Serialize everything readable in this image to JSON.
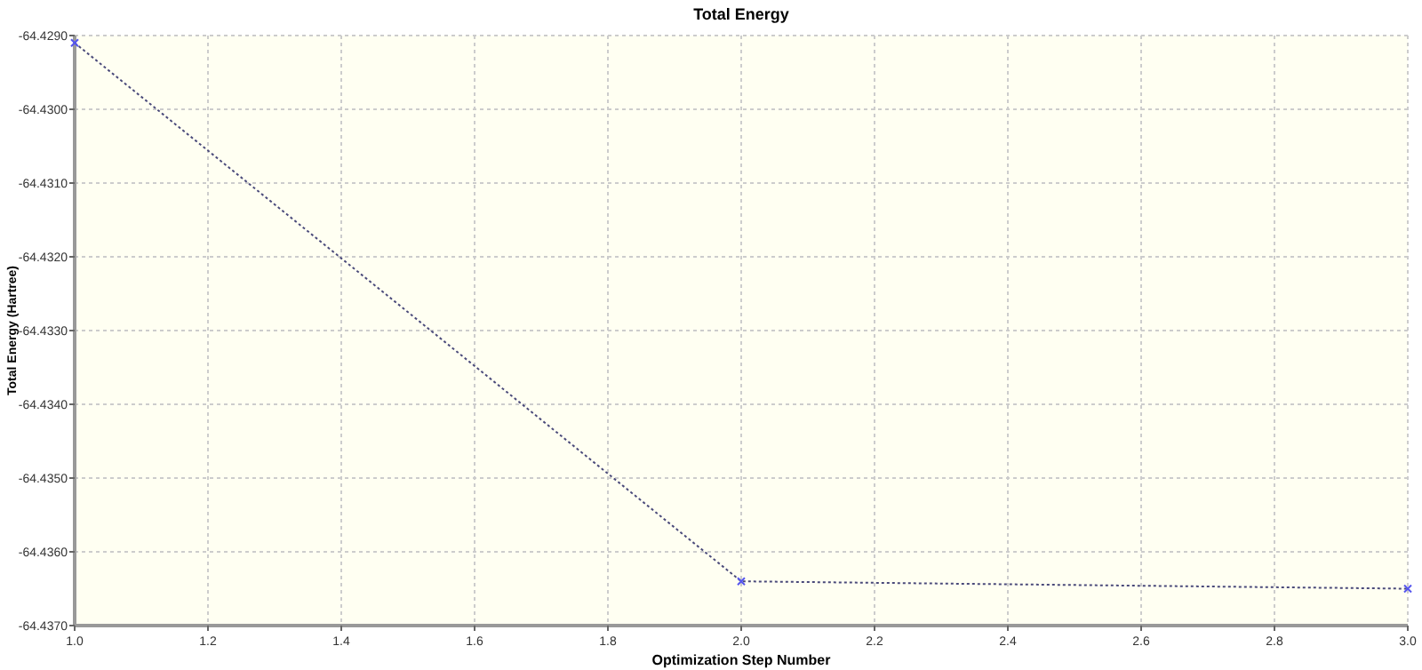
{
  "chart_data": {
    "type": "line",
    "title": "Total Energy",
    "xlabel": "Optimization Step Number",
    "ylabel": "Total Energy (Hartree)",
    "x": [
      1,
      2,
      3
    ],
    "series": [
      {
        "color": "#4a4a7a",
        "values": [
          -64.4291,
          -64.4364,
          -64.4365
        ]
      }
    ],
    "xlim": [
      1,
      3
    ],
    "xticks": [
      {
        "value": 1,
        "label": "1.0"
      },
      {
        "value": 1.2,
        "label": "1.2"
      },
      {
        "value": 1.4,
        "label": "1.4"
      },
      {
        "value": 1.6,
        "label": "1.6"
      },
      {
        "value": 1.8,
        "label": "1.8"
      },
      {
        "value": 2,
        "label": "2.0"
      },
      {
        "value": 2.2,
        "label": "2.2"
      },
      {
        "value": 2.4,
        "label": "2.4"
      },
      {
        "value": 2.6,
        "label": "2.6"
      },
      {
        "value": 2.8,
        "label": "2.8"
      },
      {
        "value": 3,
        "label": "3.0"
      }
    ],
    "ylim": [
      -64.437,
      -64.429
    ],
    "yticks": [
      {
        "value": -64.437,
        "label": "-64.4370"
      },
      {
        "value": -64.436,
        "label": "-64.4360"
      },
      {
        "value": -64.435,
        "label": "-64.4350"
      },
      {
        "value": -64.434,
        "label": "-64.4340"
      },
      {
        "value": -64.433,
        "label": "-64.4330"
      },
      {
        "value": -64.432,
        "label": "-64.4320"
      },
      {
        "value": -64.431,
        "label": "-64.4310"
      },
      {
        "value": -64.43,
        "label": "-64.4300"
      },
      {
        "value": -64.429,
        "label": "-64.4290"
      }
    ],
    "grid": true,
    "marker": "cross",
    "line_style": "dotted"
  }
}
